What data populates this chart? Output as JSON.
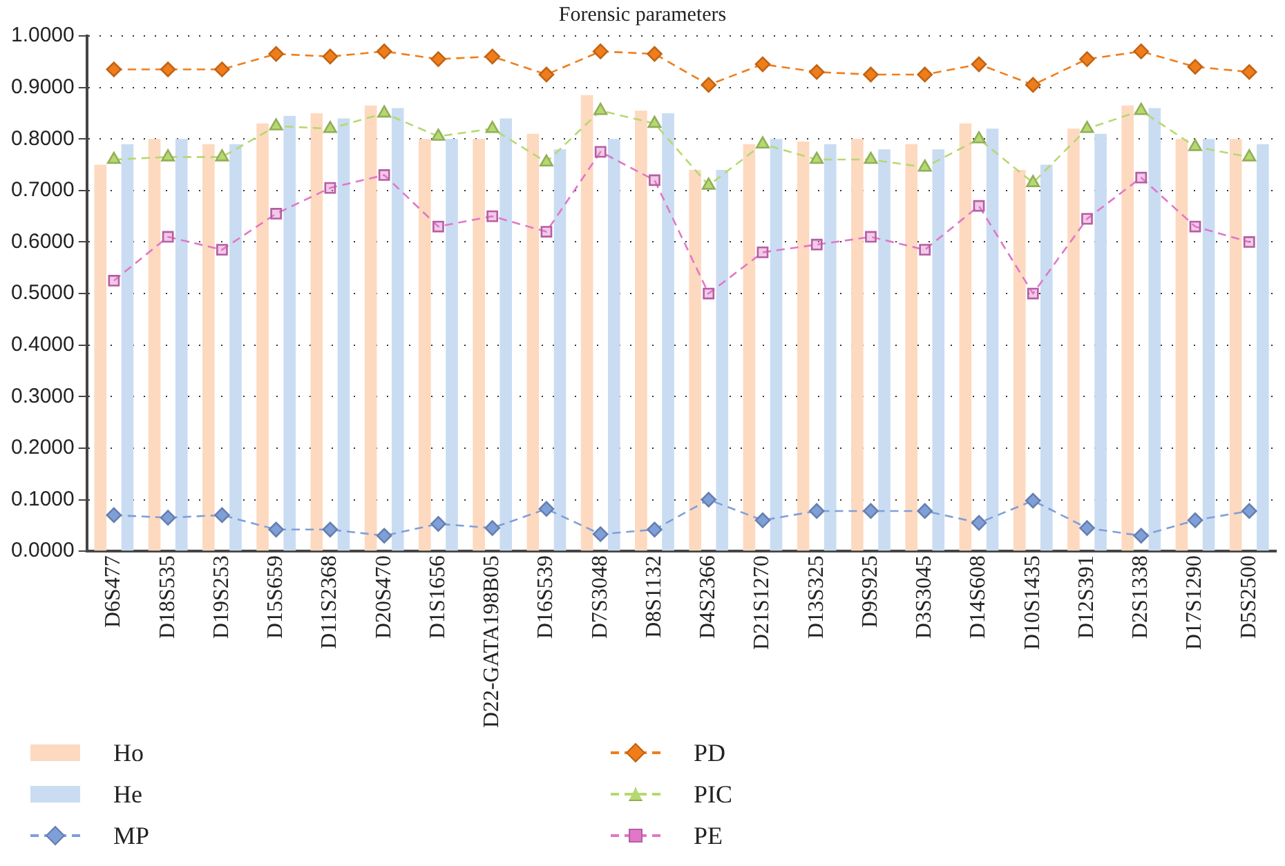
{
  "chart_data": {
    "type": "bar",
    "title": "Forensic parameters",
    "categories": [
      "D6S477",
      "D18S535",
      "D19S253",
      "D15S659",
      "D11S2368",
      "D20S470",
      "D1S1656",
      "D22-GATA198B05",
      "D16S539",
      "D7S3048",
      "D8S1132",
      "D4S2366",
      "D21S1270",
      "D13S325",
      "D9S925",
      "D3S3045",
      "D14S608",
      "D10S1435",
      "D12S391",
      "D2S1338",
      "D17S1290",
      "D5S2500"
    ],
    "series": [
      {
        "name": "Ho",
        "color": "#fdd9bf",
        "values": [
          0.75,
          0.8,
          0.79,
          0.83,
          0.85,
          0.865,
          0.8,
          0.8,
          0.81,
          0.885,
          0.855,
          0.74,
          0.79,
          0.795,
          0.8,
          0.79,
          0.83,
          0.74,
          0.82,
          0.865,
          0.8,
          0.8
        ]
      },
      {
        "name": "He",
        "color": "#c9dcf2",
        "values": [
          0.79,
          0.8,
          0.79,
          0.845,
          0.84,
          0.86,
          0.8,
          0.84,
          0.78,
          0.8,
          0.85,
          0.74,
          0.8,
          0.79,
          0.78,
          0.78,
          0.82,
          0.75,
          0.81,
          0.86,
          0.8,
          0.79
        ]
      },
      {
        "name": "MP",
        "type": "line",
        "color": "#7f9fd9",
        "marker": "diamond",
        "values": [
          0.07,
          0.065,
          0.07,
          0.042,
          0.042,
          0.03,
          0.053,
          0.045,
          0.082,
          0.033,
          0.042,
          0.1,
          0.06,
          0.078,
          0.078,
          0.078,
          0.055,
          0.098,
          0.045,
          0.03,
          0.06,
          0.078
        ]
      },
      {
        "name": "PD",
        "type": "line",
        "color": "#f07d1a",
        "marker": "diamond",
        "values": [
          0.935,
          0.935,
          0.935,
          0.965,
          0.96,
          0.97,
          0.955,
          0.96,
          0.925,
          0.97,
          0.965,
          0.905,
          0.945,
          0.93,
          0.925,
          0.925,
          0.945,
          0.905,
          0.955,
          0.97,
          0.94,
          0.93
        ]
      },
      {
        "name": "PIC",
        "type": "line",
        "color": "#b5d96f",
        "marker": "triangle",
        "values": [
          0.76,
          0.765,
          0.765,
          0.825,
          0.82,
          0.85,
          0.805,
          0.82,
          0.755,
          0.855,
          0.83,
          0.71,
          0.79,
          0.76,
          0.76,
          0.745,
          0.8,
          0.715,
          0.82,
          0.855,
          0.785,
          0.765
        ]
      },
      {
        "name": "PE",
        "type": "line",
        "color": "#e077c8",
        "marker": "square",
        "values": [
          0.525,
          0.61,
          0.585,
          0.655,
          0.705,
          0.73,
          0.63,
          0.65,
          0.62,
          0.775,
          0.72,
          0.5,
          0.58,
          0.595,
          0.61,
          0.585,
          0.67,
          0.5,
          0.645,
          0.725,
          0.63,
          0.6
        ]
      }
    ],
    "ylim": [
      0,
      1
    ],
    "yticks": [
      {
        "value": 0,
        "label": "0.0000"
      },
      {
        "value": 0.1,
        "label": "0.1000"
      },
      {
        "value": 0.2,
        "label": "0.2000"
      },
      {
        "value": 0.3,
        "label": "0.3000"
      },
      {
        "value": 0.4,
        "label": "0.4000"
      },
      {
        "value": 0.5,
        "label": "0.5000"
      },
      {
        "value": 0.6,
        "label": "0.6000"
      },
      {
        "value": 0.7,
        "label": "0.7000"
      },
      {
        "value": 0.8,
        "label": "0.8000"
      },
      {
        "value": 0.9,
        "label": "0.9000"
      },
      {
        "value": 1,
        "label": "1.0000"
      }
    ],
    "grid": "y",
    "legend": "bottom",
    "line_style": "dashed"
  }
}
